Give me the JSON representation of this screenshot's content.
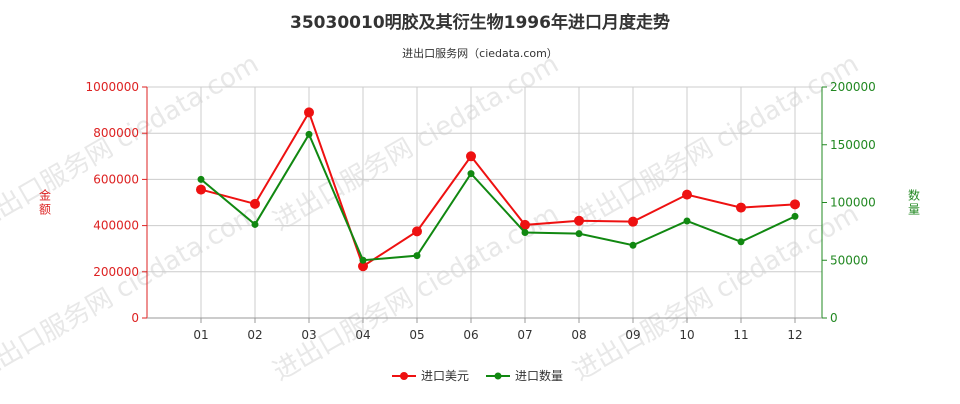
{
  "chart_data": {
    "type": "line",
    "title": "35030010明胶及其衍生物1996年进口月度走势",
    "subtitle": "进出口服务网（ciedata.com）",
    "watermark": "进出口服务网 ciedata.com",
    "xlabel": "",
    "ylabel_left": "金额",
    "ylabel_right": "数量",
    "categories": [
      "01",
      "02",
      "03",
      "04",
      "05",
      "06",
      "07",
      "08",
      "09",
      "10",
      "11",
      "12"
    ],
    "ylim_left": [
      0,
      1000000
    ],
    "yticks_left": [
      "0",
      "200000",
      "400000",
      "600000",
      "800000",
      "1000000"
    ],
    "ylim_right": [
      0,
      200000
    ],
    "yticks_right": [
      "0",
      "50000",
      "100000",
      "150000",
      "200000"
    ],
    "series": [
      {
        "name": "进口美元",
        "axis": "left",
        "color": "#ee1111",
        "values": [
          556000,
          494000,
          890000,
          224000,
          375000,
          700000,
          403000,
          421000,
          417000,
          534000,
          478000,
          492000
        ]
      },
      {
        "name": "进口数量",
        "axis": "right",
        "color": "#118811",
        "values": [
          120000,
          81000,
          159000,
          50000,
          54000,
          125000,
          74000,
          73000,
          63000,
          84000,
          66000,
          88000
        ]
      }
    ],
    "legend_position": "bottom-center",
    "grid": true,
    "axis_colors": {
      "left": "#dd2222",
      "right": "#228822"
    }
  }
}
